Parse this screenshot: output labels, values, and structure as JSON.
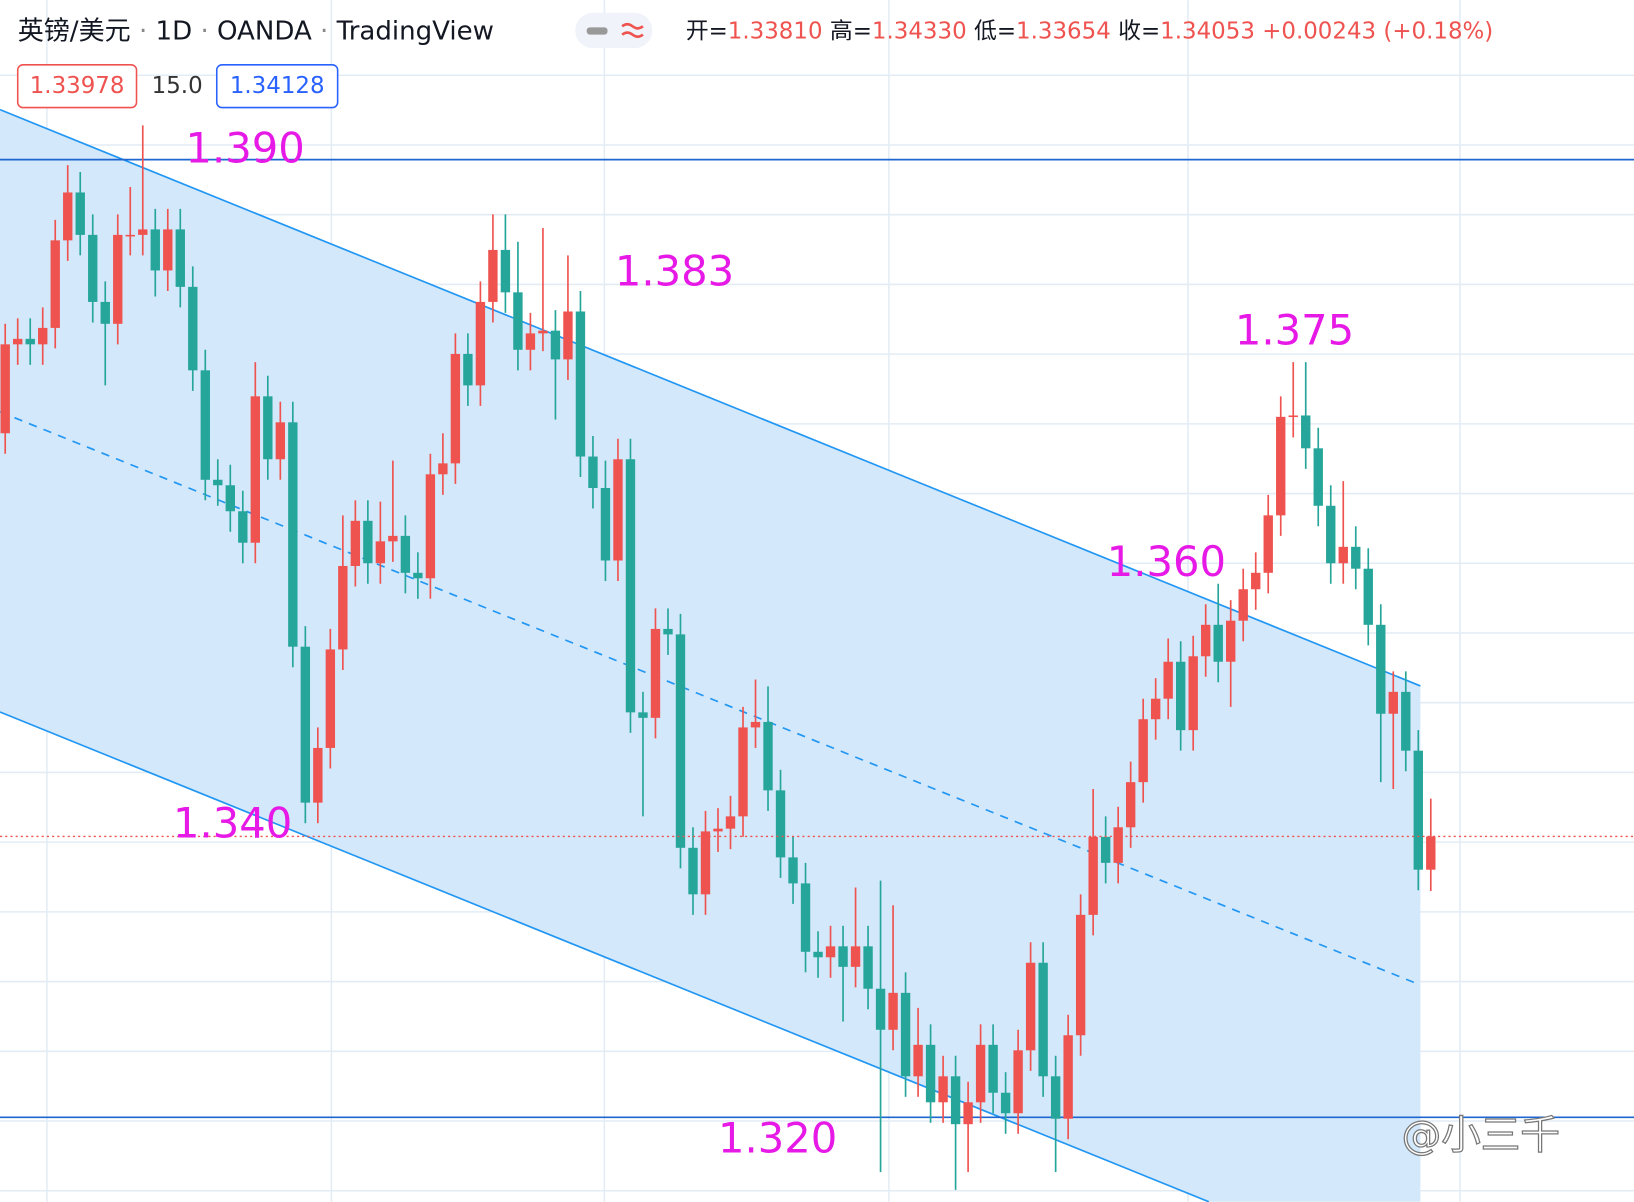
{
  "header": {
    "symbol": "英镑/美元",
    "separator": "·",
    "interval": "1D",
    "exchange": "OANDA",
    "platform": "TradingView",
    "ohlc": [
      {
        "label": "开=",
        "value": "1.33810"
      },
      {
        "label": "高=",
        "value": "1.34330"
      },
      {
        "label": "低=",
        "value": "1.33654"
      },
      {
        "label": "收=",
        "value": "1.34053"
      }
    ],
    "change": "+0.00243 (+0.18%)"
  },
  "inputs": {
    "sell": "1.33978",
    "spread": "15.0",
    "buy": "1.34128"
  },
  "annotations": [
    "1.390",
    "1.383",
    "1.375",
    "1.360",
    "1.340",
    "1.320"
  ],
  "watermark": "@小三千",
  "chart_data": {
    "type": "candlestick",
    "up_color": "#ef5350",
    "down_color": "#26a69a",
    "ylim": [
      1.31383,
      1.40165
    ],
    "hlines": [
      1.39,
      1.32
    ],
    "hline_color": "#1e66d0",
    "last_price_color": "#ef5350",
    "open": [
      1.37,
      1.3765,
      1.3769,
      1.3765,
      1.3777,
      1.3841,
      1.3876,
      1.3845,
      1.3796,
      1.378,
      1.3845,
      1.3845,
      1.3849,
      1.3819,
      1.3849,
      1.3807,
      1.3746,
      1.3666,
      1.3662,
      1.3643,
      1.362,
      1.3727,
      1.3681,
      1.3708,
      1.3544,
      1.343,
      1.347,
      1.3542,
      1.3603,
      1.3636,
      1.3605,
      1.3621,
      1.3625,
      1.3598,
      1.3594,
      1.367,
      1.3678,
      1.3758,
      1.3735,
      1.3796,
      1.3834,
      1.3803,
      1.3761,
      1.3773,
      1.3775,
      1.3754,
      1.3789,
      1.3683,
      1.366,
      1.3607,
      1.3681,
      1.3496,
      1.3492,
      1.3557,
      1.3553,
      1.3397,
      1.3363,
      1.3409,
      1.3411,
      1.342,
      1.3485,
      1.3489,
      1.3439,
      1.339,
      1.3371,
      1.3321,
      1.3317,
      1.3325,
      1.331,
      1.3325,
      1.3294,
      1.3264,
      1.3291,
      1.323,
      1.3253,
      1.3211,
      1.323,
      1.3195,
      1.3211,
      1.3253,
      1.3218,
      1.3203,
      1.3249,
      1.3313,
      1.323,
      1.3199,
      1.326,
      1.3348,
      1.3405,
      1.3386,
      1.3412,
      1.3445,
      1.3491,
      1.3506,
      1.3533,
      1.3483,
      1.3537,
      1.356,
      1.3533,
      1.3563,
      1.3586,
      1.3598,
      1.364,
      1.3712,
      1.3713,
      1.3689,
      1.3647,
      1.3605,
      1.3617,
      1.3601,
      1.356,
      1.3495,
      1.3511,
      1.3468,
      1.3381
    ],
    "high": [
      1.378,
      1.3784,
      1.3784,
      1.3792,
      1.3856,
      1.3896,
      1.3891,
      1.386,
      1.3811,
      1.386,
      1.388,
      1.3925,
      1.3864,
      1.3864,
      1.3864,
      1.3822,
      1.3761,
      1.3681,
      1.3677,
      1.3658,
      1.3752,
      1.3742,
      1.3723,
      1.3723,
      1.3559,
      1.3485,
      1.3557,
      1.364,
      1.3651,
      1.3651,
      1.365,
      1.368,
      1.364,
      1.3613,
      1.3685,
      1.37,
      1.3773,
      1.3773,
      1.3811,
      1.386,
      1.386,
      1.384,
      1.3788,
      1.385,
      1.379,
      1.383,
      1.3804,
      1.3698,
      1.368,
      1.3696,
      1.3696,
      1.3511,
      1.3572,
      1.3572,
      1.3568,
      1.3412,
      1.3424,
      1.3426,
      1.3435,
      1.35,
      1.352,
      1.3515,
      1.3454,
      1.3405,
      1.3386,
      1.3336,
      1.334,
      1.334,
      1.3368,
      1.334,
      1.3373,
      1.3355,
      1.3306,
      1.328,
      1.3268,
      1.3245,
      1.3245,
      1.3226,
      1.3268,
      1.3268,
      1.3233,
      1.3264,
      1.3328,
      1.3328,
      1.3245,
      1.3275,
      1.3363,
      1.344,
      1.342,
      1.3427,
      1.346,
      1.3506,
      1.3521,
      1.355,
      1.3548,
      1.3552,
      1.3575,
      1.359,
      1.3578,
      1.3601,
      1.3613,
      1.3655,
      1.3727,
      1.3752,
      1.3752,
      1.3704,
      1.3662,
      1.3665,
      1.3632,
      1.3616,
      1.3575,
      1.3526,
      1.3526,
      1.3483,
      1.3433
    ],
    "low": [
      1.3685,
      1.375,
      1.375,
      1.375,
      1.3762,
      1.3826,
      1.383,
      1.3781,
      1.3735,
      1.3765,
      1.383,
      1.383,
      1.38,
      1.3804,
      1.3792,
      1.3731,
      1.3651,
      1.3647,
      1.3628,
      1.3605,
      1.3605,
      1.3666,
      1.3666,
      1.3529,
      1.3415,
      1.3415,
      1.3455,
      1.3527,
      1.3588,
      1.359,
      1.359,
      1.3606,
      1.3583,
      1.3579,
      1.3579,
      1.3655,
      1.3663,
      1.372,
      1.372,
      1.3781,
      1.3788,
      1.3746,
      1.3746,
      1.376,
      1.371,
      1.3739,
      1.3668,
      1.3645,
      1.3592,
      1.3592,
      1.3481,
      1.342,
      1.3477,
      1.3538,
      1.3382,
      1.3348,
      1.3348,
      1.3394,
      1.3396,
      1.3405,
      1.347,
      1.3424,
      1.3375,
      1.3356,
      1.3306,
      1.3302,
      1.3302,
      1.327,
      1.3295,
      1.3279,
      1.316,
      1.3249,
      1.3215,
      1.3215,
      1.3196,
      1.3196,
      1.3147,
      1.316,
      1.3196,
      1.3203,
      1.3188,
      1.3188,
      1.3234,
      1.3215,
      1.316,
      1.3184,
      1.3245,
      1.3333,
      1.3371,
      1.3371,
      1.3397,
      1.343,
      1.3476,
      1.3491,
      1.3468,
      1.3468,
      1.3522,
      1.3518,
      1.35,
      1.3548,
      1.3571,
      1.3583,
      1.3625,
      1.3697,
      1.3674,
      1.3632,
      1.359,
      1.359,
      1.3586,
      1.3545,
      1.3445,
      1.344,
      1.3453,
      1.3366,
      1.33654
    ],
    "close": [
      1.3765,
      1.3769,
      1.3765,
      1.3777,
      1.3841,
      1.3876,
      1.3845,
      1.3796,
      1.378,
      1.3845,
      1.3845,
      1.3849,
      1.3819,
      1.3849,
      1.3807,
      1.3746,
      1.3666,
      1.3662,
      1.3643,
      1.362,
      1.3727,
      1.3681,
      1.3708,
      1.3544,
      1.343,
      1.347,
      1.3542,
      1.3603,
      1.3636,
      1.3605,
      1.3621,
      1.3625,
      1.3598,
      1.3594,
      1.367,
      1.3678,
      1.3758,
      1.3735,
      1.3796,
      1.3834,
      1.3803,
      1.3761,
      1.3773,
      1.3775,
      1.3754,
      1.3789,
      1.3683,
      1.366,
      1.3607,
      1.3681,
      1.3496,
      1.3492,
      1.3557,
      1.3553,
      1.3397,
      1.3363,
      1.3409,
      1.3411,
      1.342,
      1.3485,
      1.3489,
      1.3439,
      1.339,
      1.3371,
      1.3321,
      1.3317,
      1.3325,
      1.331,
      1.3325,
      1.3294,
      1.3264,
      1.3291,
      1.323,
      1.3253,
      1.3211,
      1.323,
      1.3195,
      1.3211,
      1.3253,
      1.3218,
      1.3203,
      1.3249,
      1.3313,
      1.323,
      1.3199,
      1.326,
      1.3348,
      1.3405,
      1.3386,
      1.3412,
      1.3445,
      1.3491,
      1.3506,
      1.3533,
      1.3483,
      1.3537,
      1.356,
      1.3533,
      1.3563,
      1.3586,
      1.3598,
      1.364,
      1.3712,
      1.3713,
      1.3689,
      1.3647,
      1.3605,
      1.3617,
      1.3601,
      1.356,
      1.3495,
      1.3511,
      1.3468,
      1.3381,
      1.34053
    ]
  }
}
